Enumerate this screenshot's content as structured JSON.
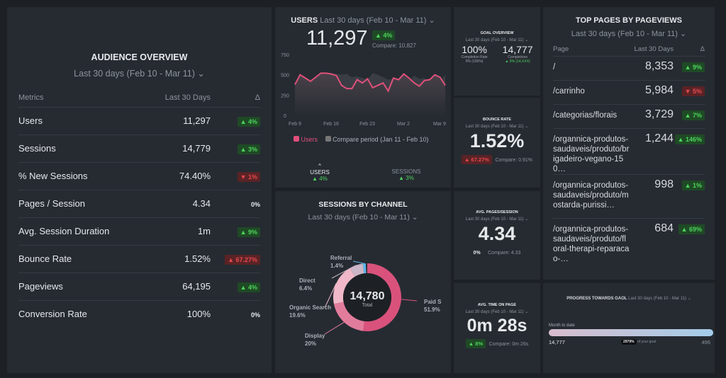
{
  "date_range": "Last 30 days (Feb 10 - Mar 11)",
  "audience": {
    "title": "AUDIENCE OVERVIEW",
    "headers": [
      "Metrics",
      "Last 30 Days",
      "Δ"
    ],
    "rows": [
      {
        "metric": "Users",
        "value": "11,297",
        "delta": "▲ 4%",
        "dir": "up"
      },
      {
        "metric": "Sessions",
        "value": "14,779",
        "delta": "▲ 3%",
        "dir": "up"
      },
      {
        "metric": "% New Sessions",
        "value": "74.40%",
        "delta": "▼ 1%",
        "dir": "dn"
      },
      {
        "metric": "Pages / Session",
        "value": "4.34",
        "delta": "0%",
        "dir": "z"
      },
      {
        "metric": "Avg. Session Duration",
        "value": "1m",
        "delta": "▲ 9%",
        "dir": "up"
      },
      {
        "metric": "Bounce Rate",
        "value": "1.52%",
        "delta": "▲ 67.27%",
        "dir": "dn"
      },
      {
        "metric": "Pageviews",
        "value": "64,195",
        "delta": "▲ 4%",
        "dir": "up"
      },
      {
        "metric": "Conversion Rate",
        "value": "100%",
        "delta": "0%",
        "dir": "z"
      }
    ]
  },
  "users": {
    "title": "USERS",
    "value": "11,297",
    "delta": "▲ 4%",
    "compare": "Compare: 10,827",
    "legend_users": "Users",
    "legend_compare": "Compare period (Jan 11 - Feb 10)",
    "tabs": [
      {
        "label": "USERS",
        "delta": "▲ 4%"
      },
      {
        "label": "SESSIONS",
        "delta": "▲ 3%"
      }
    ],
    "chart_data": {
      "type": "area",
      "ylim": [
        0,
        750
      ],
      "yticks": [
        "0",
        "250",
        "500",
        "750"
      ],
      "xticks": [
        "Feb 9",
        "Feb 16",
        "Feb 23",
        "Mar 2",
        "Mar 9"
      ],
      "series": [
        {
          "name": "Users",
          "color": "#e0507a",
          "values": [
            380,
            500,
            460,
            420,
            470,
            520,
            520,
            510,
            490,
            370,
            330,
            330,
            440,
            400,
            450,
            340,
            370,
            400,
            300,
            460,
            440,
            510,
            460,
            400,
            360,
            430,
            440,
            500,
            470,
            370
          ]
        },
        {
          "name": "Compare period (Jan 11 - Feb 10)",
          "color": "#5a5e66",
          "values": [
            300,
            260,
            300,
            280,
            340,
            350,
            330,
            520,
            510,
            500,
            510,
            470,
            480,
            460,
            440,
            520,
            500,
            470,
            440,
            450,
            320,
            470,
            420,
            490,
            450,
            460,
            350,
            400,
            420,
            500
          ]
        }
      ]
    }
  },
  "channel": {
    "title": "SESSIONS BY CHANNEL",
    "total": "14,780",
    "total_label": "Total",
    "chart_data": {
      "type": "pie",
      "slices": [
        {
          "label": "Paid S",
          "value": 51.9,
          "text": "51.9%",
          "color": "#d9527c"
        },
        {
          "label": "Display",
          "value": 20,
          "text": "20%",
          "color": "#e27c9c"
        },
        {
          "label": "Organic Search",
          "value": 19.6,
          "text": "19.6%",
          "color": "#f0b8c8"
        },
        {
          "label": "Direct",
          "value": 6.4,
          "text": "6.4%",
          "color": "#cbb6c6"
        },
        {
          "label": "Referral",
          "value": 1.4,
          "text": "1.4%",
          "color": "#5fb4e8"
        }
      ]
    }
  },
  "goal": {
    "title": "GOAL OVERVIEW",
    "rate": "100%",
    "rate_label": "Completion Rate",
    "rate_delta": "0% (100%)",
    "completions": "14,777",
    "completions_label": "Completions",
    "completions_delta": "▲ 9% (14,XXX)"
  },
  "bounce": {
    "title": "BOUNCE RATE",
    "value": "1.52%",
    "delta": "▲ 67.27%",
    "compare": "Compare: 0.91%"
  },
  "pps": {
    "title": "AVG. PAGES/SESSION",
    "value": "4.34",
    "delta": "0%",
    "compare": "Compare: 4.33"
  },
  "time": {
    "title": "AVG. TIME ON PAGE",
    "value": "0m 28s",
    "delta": "▲ 8%",
    "compare": "Compare: 0m 26s"
  },
  "top_pages": {
    "title": "TOP PAGES BY PAGEVIEWS",
    "headers": [
      "Page",
      "Last 30 Days",
      "Δ"
    ],
    "rows": [
      {
        "page": "/",
        "value": "8,353",
        "delta": "▲ 9%",
        "dir": "up"
      },
      {
        "page": "/carrinho",
        "value": "5,984",
        "delta": "▼ 5%",
        "dir": "dn"
      },
      {
        "page": "/categorias/florais",
        "value": "3,729",
        "delta": "▲ 7%",
        "dir": "up"
      },
      {
        "page": "/organnica-produtos-saudaveis/produto/brigadeiro-vegano-150…",
        "value": "1,244",
        "delta": "▲ 146%",
        "dir": "up"
      },
      {
        "page": "/organnica-produtos-saudaveis/produto/mostarda-purissi…",
        "value": "998",
        "delta": "▲ 1%",
        "dir": "up"
      },
      {
        "page": "/organnica-produtos-saudaveis/produto/floral-therapi-reparacao-…",
        "value": "684",
        "delta": "▲ 69%",
        "dir": "up"
      }
    ]
  },
  "progress": {
    "title": "PROGRESS TOWARDS GAOL",
    "label": "Month to date",
    "current": "14,777",
    "goal": "496",
    "percent_text": "2979%",
    "of_goal": "of your goal",
    "fraction": 1
  }
}
